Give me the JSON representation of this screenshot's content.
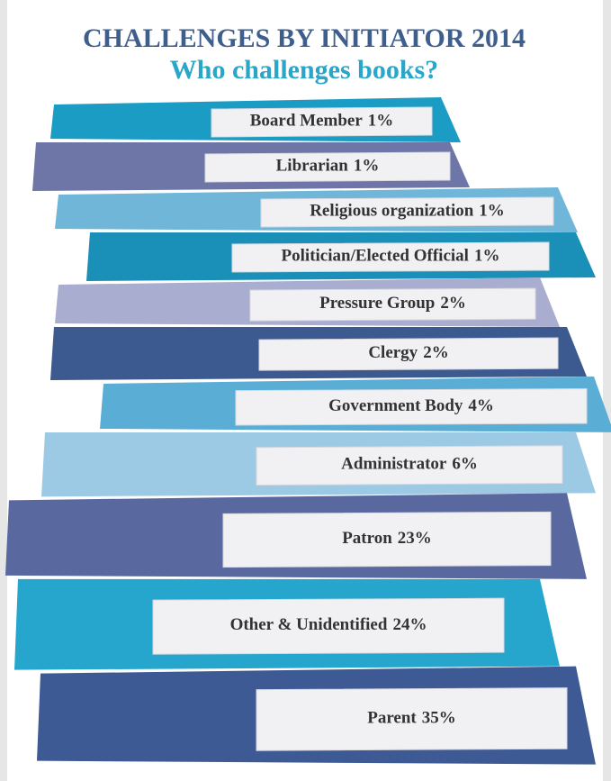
{
  "chart_data": {
    "type": "bar",
    "title": "CHALLENGES BY INITIATOR 2014",
    "subtitle": "Who challenges books?",
    "categories": [
      "Board Member",
      "Librarian",
      "Religious organization",
      "Politician/Elected Official",
      "Pressure Group",
      "Clergy",
      "Government Body",
      "Administrator",
      "Patron",
      "Other & Unidentified",
      "Parent"
    ],
    "values": [
      1,
      1,
      1,
      1,
      2,
      2,
      4,
      6,
      23,
      24,
      35
    ],
    "value_labels": [
      "1%",
      "1%",
      "1%",
      "1%",
      "2%",
      "2%",
      "4%",
      "6%",
      "23%",
      "24%",
      "35%"
    ],
    "colors": [
      "#1a9cc4",
      "#6e76a8",
      "#6fb6d8",
      "#1a8fb8",
      "#a9aed0",
      "#3c5a8f",
      "#5aaed6",
      "#9cc9e4",
      "#5a68a0",
      "#26a6cc",
      "#3d5a94"
    ]
  }
}
